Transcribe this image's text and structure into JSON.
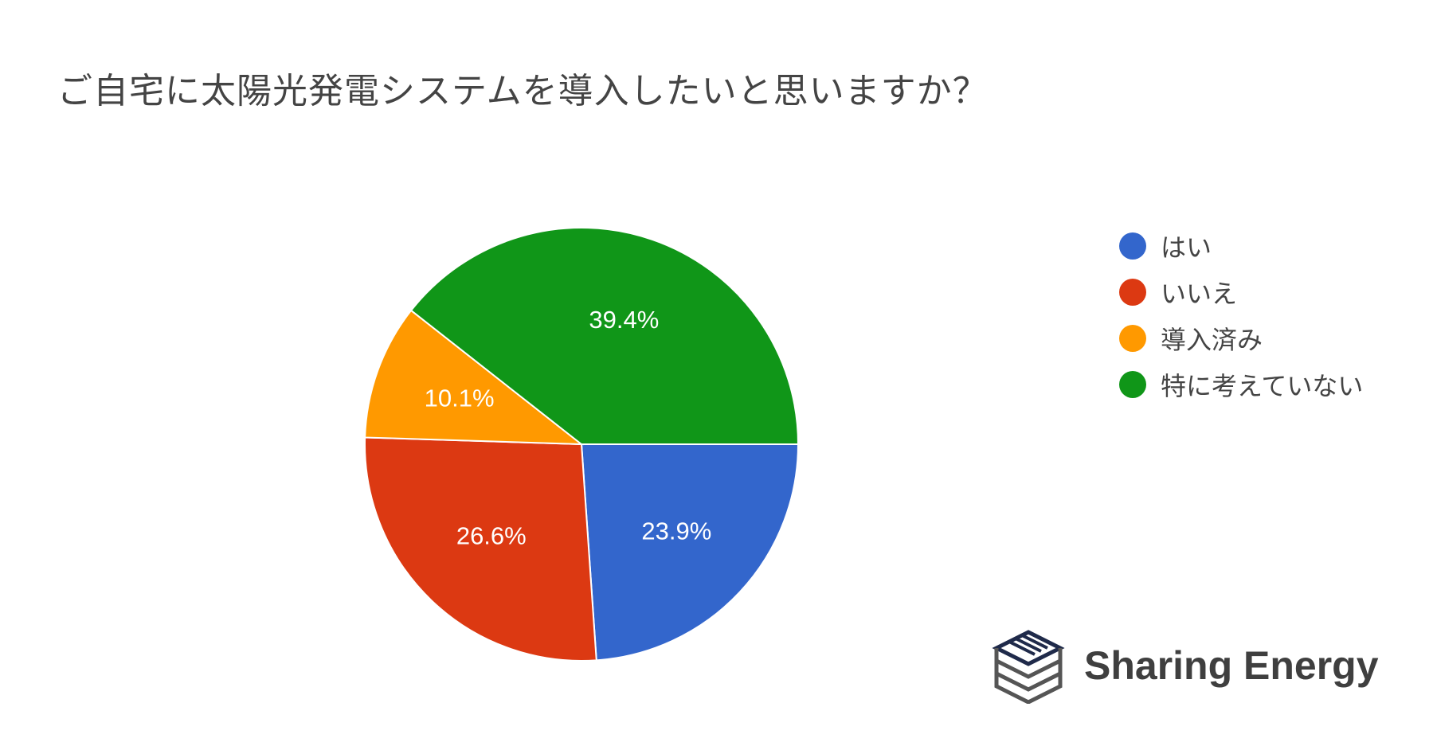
{
  "title": "ご自宅に太陽光発電システムを導入したいと思いますか？",
  "chart_data": {
    "type": "pie",
    "title": "ご自宅に太陽光発電システムを導入したいと思いますか？",
    "categories": [
      "はい",
      "いいえ",
      "導入済み",
      "特に考えていない"
    ],
    "values": [
      23.9,
      26.6,
      10.1,
      39.4
    ],
    "labels": [
      "23.9%",
      "26.6%",
      "10.1%",
      "39.4%"
    ],
    "colors": [
      "#3366cc",
      "#dc3912",
      "#ff9900",
      "#109618"
    ],
    "legend": "right",
    "start": "3 o'clock, clockwise"
  },
  "brand": {
    "name": "Sharing Energy",
    "logo_icon": "stacked-layers-logo-icon"
  }
}
